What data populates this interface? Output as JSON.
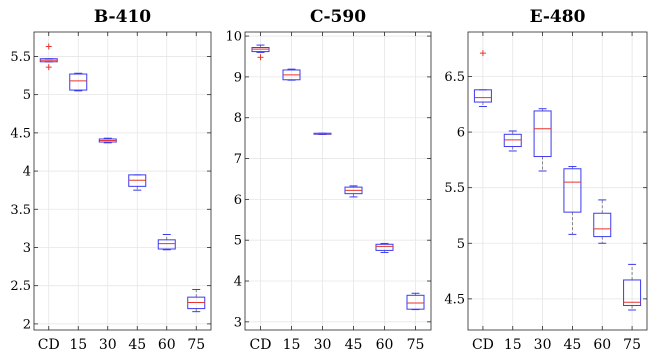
{
  "colors": {
    "box": "#3b3bf0",
    "median": "#e8352d",
    "outlier": "#e8352d",
    "whisker": "#6a6a6a",
    "grid": "#e6e6e6"
  },
  "chart_data": [
    {
      "type": "box",
      "title": "B-410",
      "categories": [
        "CD",
        "15",
        "30",
        "45",
        "60",
        "75"
      ],
      "ylim": [
        1.92,
        5.82
      ],
      "yticks": [
        2,
        2.5,
        3,
        3.5,
        4,
        4.5,
        5,
        5.5
      ],
      "ytick_labels": [
        "2",
        "2.5",
        "3",
        "3.5",
        "4",
        "4.5",
        "5",
        "5.5"
      ],
      "grid": true,
      "boxes": [
        {
          "whisker_low": 5.43,
          "q1": 5.43,
          "median": 5.45,
          "q3": 5.47,
          "whisker_high": 5.47,
          "outliers": [
            5.63,
            5.36
          ]
        },
        {
          "whisker_low": 5.05,
          "q1": 5.06,
          "median": 5.18,
          "q3": 5.27,
          "whisker_high": 5.28,
          "outliers": []
        },
        {
          "whisker_low": 4.37,
          "q1": 4.38,
          "median": 4.4,
          "q3": 4.42,
          "whisker_high": 4.43,
          "outliers": []
        },
        {
          "whisker_low": 3.75,
          "q1": 3.8,
          "median": 3.88,
          "q3": 3.95,
          "whisker_high": 3.95,
          "outliers": []
        },
        {
          "whisker_low": 2.97,
          "q1": 2.98,
          "median": 3.05,
          "q3": 3.1,
          "whisker_high": 3.17,
          "outliers": []
        },
        {
          "whisker_low": 2.16,
          "q1": 2.2,
          "median": 2.28,
          "q3": 2.35,
          "whisker_high": 2.45,
          "outliers": []
        }
      ]
    },
    {
      "type": "box",
      "title": "C-590",
      "categories": [
        "CD",
        "15",
        "30",
        "45",
        "60",
        "75"
      ],
      "ylim": [
        2.8,
        10.1
      ],
      "yticks": [
        3,
        4,
        5,
        6,
        7,
        8,
        9,
        10
      ],
      "ytick_labels": [
        "3",
        "4",
        "5",
        "6",
        "7",
        "8",
        "9",
        "10"
      ],
      "grid": true,
      "boxes": [
        {
          "whisker_low": 9.6,
          "q1": 9.62,
          "median": 9.68,
          "q3": 9.72,
          "whisker_high": 9.78,
          "outliers": [
            9.48
          ]
        },
        {
          "whisker_low": 8.92,
          "q1": 8.93,
          "median": 9.05,
          "q3": 9.17,
          "whisker_high": 9.19,
          "outliers": []
        },
        {
          "whisker_low": 7.59,
          "q1": 7.6,
          "median": 7.61,
          "q3": 7.62,
          "whisker_high": 7.62,
          "outliers": []
        },
        {
          "whisker_low": 6.06,
          "q1": 6.14,
          "median": 6.22,
          "q3": 6.3,
          "whisker_high": 6.33,
          "outliers": []
        },
        {
          "whisker_low": 4.7,
          "q1": 4.75,
          "median": 4.85,
          "q3": 4.9,
          "whisker_high": 4.92,
          "outliers": []
        },
        {
          "whisker_low": 3.3,
          "q1": 3.31,
          "median": 3.46,
          "q3": 3.65,
          "whisker_high": 3.7,
          "outliers": []
        }
      ]
    },
    {
      "type": "box",
      "title": "E-480",
      "categories": [
        "CD",
        "15",
        "30",
        "45",
        "60",
        "75"
      ],
      "ylim": [
        4.22,
        6.9
      ],
      "yticks": [
        4.5,
        5,
        5.5,
        6,
        6.5
      ],
      "ytick_labels": [
        "4.5",
        "5",
        "5.5",
        "6",
        "6.5"
      ],
      "grid": true,
      "boxes": [
        {
          "whisker_low": 6.23,
          "q1": 6.27,
          "median": 6.31,
          "q3": 6.38,
          "whisker_high": 6.38,
          "outliers": [
            6.71
          ]
        },
        {
          "whisker_low": 5.83,
          "q1": 5.87,
          "median": 5.93,
          "q3": 5.98,
          "whisker_high": 6.01,
          "outliers": []
        },
        {
          "whisker_low": 5.65,
          "q1": 5.78,
          "median": 6.03,
          "q3": 6.19,
          "whisker_high": 6.21,
          "outliers": []
        },
        {
          "whisker_low": 5.08,
          "q1": 5.28,
          "median": 5.55,
          "q3": 5.67,
          "whisker_high": 5.69,
          "outliers": []
        },
        {
          "whisker_low": 5.0,
          "q1": 5.06,
          "median": 5.13,
          "q3": 5.27,
          "whisker_high": 5.39,
          "outliers": []
        },
        {
          "whisker_low": 4.4,
          "q1": 4.44,
          "median": 4.47,
          "q3": 4.67,
          "whisker_high": 4.81,
          "outliers": []
        }
      ]
    }
  ]
}
